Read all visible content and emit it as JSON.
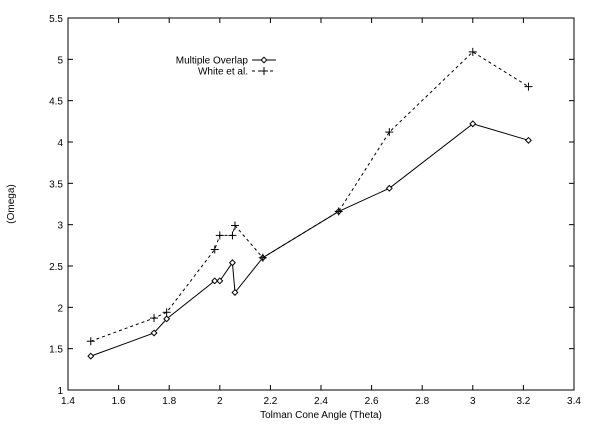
{
  "chart_data": {
    "type": "line",
    "title": "",
    "xlabel": "Tolman Cone Angle (Theta)",
    "ylabel": "(Omega)",
    "xlim": [
      1.4,
      3.4
    ],
    "ylim": [
      1,
      5.5
    ],
    "xticks": [
      1.4,
      1.6,
      1.8,
      2,
      2.2,
      2.4,
      2.6,
      2.8,
      3,
      3.2,
      3.4
    ],
    "xtick_labels": [
      "1.4",
      "1.6",
      "1.8",
      "2",
      "2.2",
      "2.4",
      "2.6",
      "2.8",
      "3",
      "3.2",
      "3.4"
    ],
    "yticks": [
      1,
      1.5,
      2,
      2.5,
      3,
      3.5,
      4,
      4.5,
      5,
      5.5
    ],
    "ytick_labels": [
      "1",
      "1.5",
      "2",
      "2.5",
      "3",
      "3.5",
      "4",
      "4.5",
      "5",
      "5.5"
    ],
    "grid": false,
    "legend_position": "top-left",
    "series": [
      {
        "name": "Multiple Overlap",
        "marker": "diamond",
        "line_style": "solid",
        "color": "#000000",
        "x": [
          1.49,
          1.74,
          1.79,
          1.98,
          2.0,
          2.05,
          2.06,
          2.17,
          2.47,
          2.67,
          3.0,
          3.22
        ],
        "y": [
          1.41,
          1.69,
          1.86,
          2.32,
          2.32,
          2.54,
          2.18,
          2.6,
          3.16,
          3.44,
          4.22,
          4.02
        ]
      },
      {
        "name": "White et al.",
        "marker": "plus",
        "line_style": "dashed",
        "color": "#000000",
        "x": [
          1.49,
          1.74,
          1.79,
          1.98,
          2.0,
          2.05,
          2.06,
          2.17,
          2.47,
          2.67,
          3.0,
          3.22
        ],
        "y": [
          1.59,
          1.87,
          1.94,
          2.7,
          2.87,
          2.87,
          2.99,
          2.6,
          3.16,
          4.12,
          5.09,
          4.67
        ]
      }
    ]
  }
}
